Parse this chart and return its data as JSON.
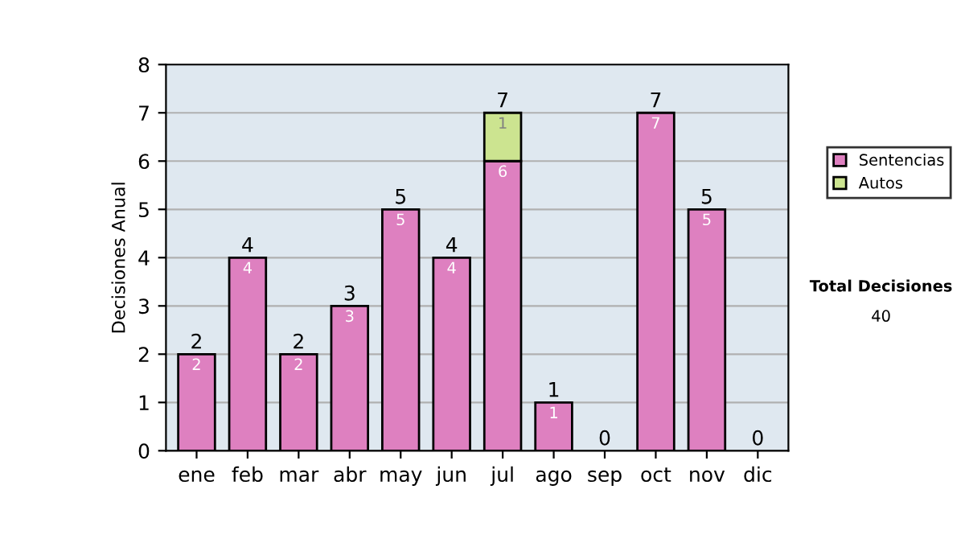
{
  "chart_data": {
    "type": "bar",
    "ylabel": "Decisiones Anual",
    "stacked": true,
    "categories": [
      "ene",
      "feb",
      "mar",
      "abr",
      "may",
      "jun",
      "jul",
      "ago",
      "sep",
      "oct",
      "nov",
      "dic"
    ],
    "series": [
      {
        "name": "Sentencias",
        "color": "#de80c0",
        "values": [
          2,
          4,
          2,
          3,
          5,
          4,
          6,
          1,
          0,
          7,
          5,
          0
        ],
        "value_labels": [
          "2",
          "4",
          "2",
          "3",
          "5",
          "4",
          "6",
          "1",
          null,
          "7",
          "5",
          null
        ]
      },
      {
        "name": "Autos",
        "color": "#cce490",
        "values": [
          0,
          0,
          0,
          0,
          0,
          0,
          1,
          0,
          0,
          0,
          0,
          0
        ],
        "value_labels": [
          null,
          null,
          null,
          null,
          null,
          null,
          "1",
          null,
          null,
          null,
          null,
          null
        ]
      }
    ],
    "totals": [
      "2",
      "4",
      "2",
      "3",
      "5",
      "4",
      "7",
      "1",
      "0",
      "7",
      "5",
      "0"
    ],
    "ylim": [
      0,
      8
    ],
    "yticks": [
      0,
      1,
      2,
      3,
      4,
      5,
      6,
      7,
      8
    ],
    "grid": "y",
    "legend": "right",
    "annotations": [
      "Total Decisiones",
      "40"
    ]
  }
}
